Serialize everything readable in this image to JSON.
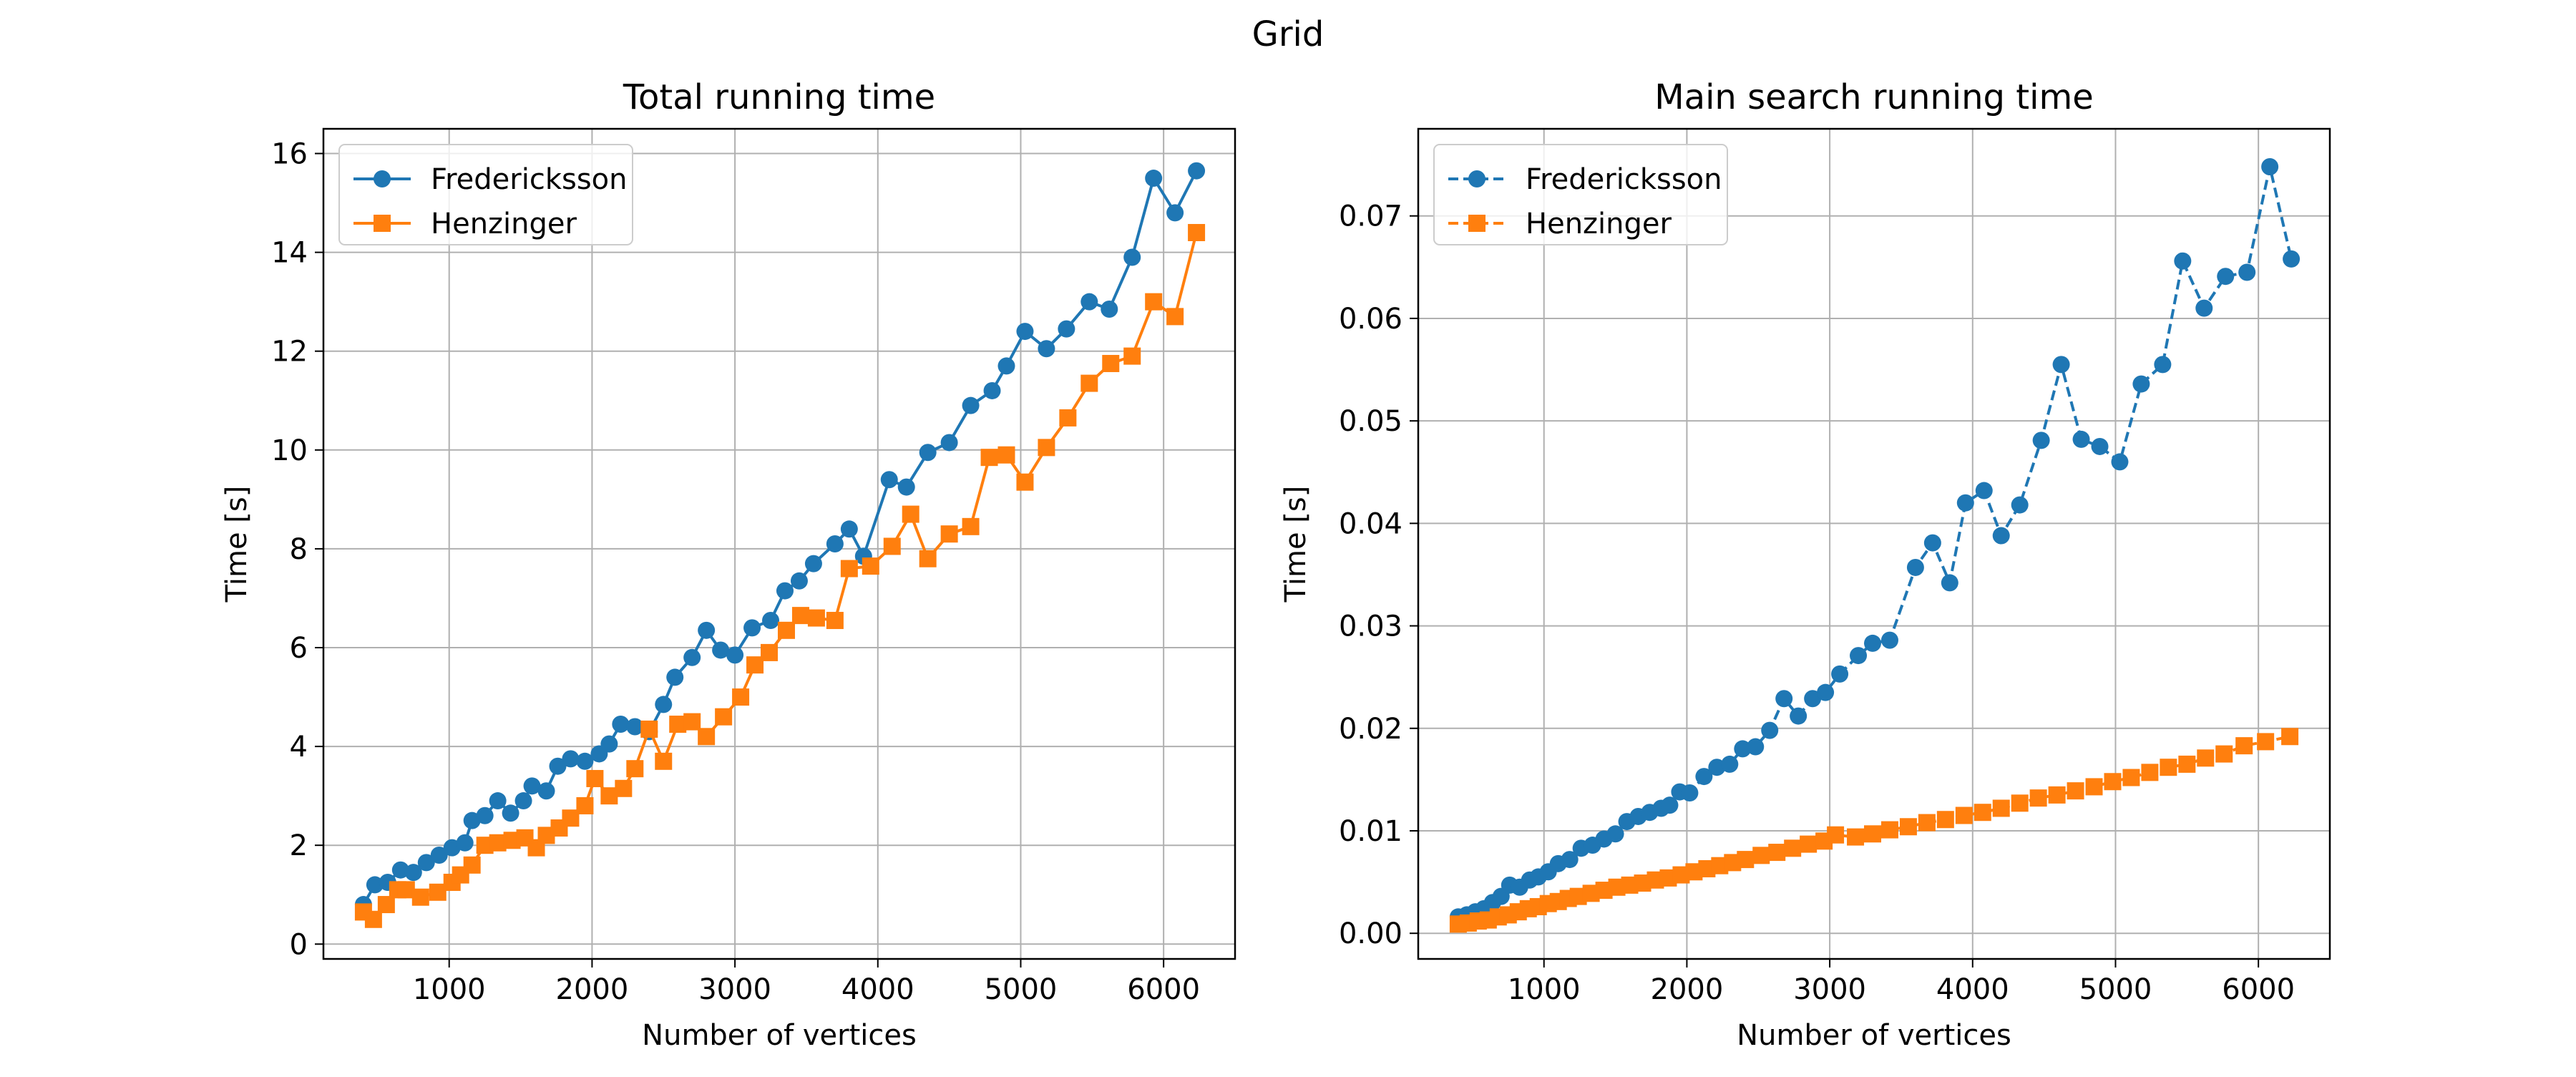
{
  "figure": {
    "suptitle": "Grid"
  },
  "chart_data": [
    {
      "type": "line",
      "title": "Total running time",
      "xlabel": "Number of vertices",
      "ylabel": "Time [s]",
      "xlim": [
        120,
        6500
      ],
      "ylim": [
        -0.3,
        16.5
      ],
      "xticks": [
        1000,
        2000,
        3000,
        4000,
        5000,
        6000
      ],
      "xtick_labels": [
        "1000",
        "2000",
        "3000",
        "4000",
        "5000",
        "6000"
      ],
      "yticks": [
        0,
        2,
        4,
        6,
        8,
        10,
        12,
        14,
        16
      ],
      "ytick_labels": [
        "0",
        "2",
        "4",
        "6",
        "8",
        "10",
        "12",
        "14",
        "16"
      ],
      "grid": true,
      "legend_position": "upper-left",
      "series": [
        {
          "name": "Fredericksson",
          "color": "#1f77b4",
          "marker": "circle",
          "linestyle": "solid",
          "points": [
            [
              400,
              0.8
            ],
            [
              480,
              1.2
            ],
            [
              570,
              1.25
            ],
            [
              660,
              1.5
            ],
            [
              750,
              1.45
            ],
            [
              840,
              1.65
            ],
            [
              930,
              1.8
            ],
            [
              1020,
              1.95
            ],
            [
              1110,
              2.05
            ],
            [
              1160,
              2.5
            ],
            [
              1250,
              2.6
            ],
            [
              1340,
              2.9
            ],
            [
              1430,
              2.65
            ],
            [
              1520,
              2.9
            ],
            [
              1580,
              3.2
            ],
            [
              1680,
              3.1
            ],
            [
              1760,
              3.6
            ],
            [
              1850,
              3.75
            ],
            [
              1950,
              3.7
            ],
            [
              2050,
              3.85
            ],
            [
              2120,
              4.05
            ],
            [
              2200,
              4.45
            ],
            [
              2300,
              4.4
            ],
            [
              2400,
              4.3
            ],
            [
              2500,
              4.85
            ],
            [
              2580,
              5.4
            ],
            [
              2700,
              5.8
            ],
            [
              2800,
              6.35
            ],
            [
              2900,
              5.95
            ],
            [
              3000,
              5.85
            ],
            [
              3120,
              6.4
            ],
            [
              3250,
              6.55
            ],
            [
              3350,
              7.15
            ],
            [
              3450,
              7.35
            ],
            [
              3550,
              7.7
            ],
            [
              3700,
              8.1
            ],
            [
              3800,
              8.4
            ],
            [
              3900,
              7.85
            ],
            [
              4080,
              9.4
            ],
            [
              4200,
              9.25
            ],
            [
              4350,
              9.95
            ],
            [
              4500,
              10.15
            ],
            [
              4650,
              10.9
            ],
            [
              4800,
              11.2
            ],
            [
              4900,
              11.7
            ],
            [
              5030,
              12.4
            ],
            [
              5180,
              12.05
            ],
            [
              5320,
              12.45
            ],
            [
              5480,
              13.0
            ],
            [
              5620,
              12.85
            ],
            [
              5780,
              13.9
            ],
            [
              5930,
              15.5
            ],
            [
              6080,
              14.8
            ],
            [
              6230,
              15.65
            ]
          ]
        },
        {
          "name": "Henzinger",
          "color": "#ff7f0e",
          "marker": "square",
          "linestyle": "solid",
          "points": [
            [
              400,
              0.65
            ],
            [
              470,
              0.5
            ],
            [
              560,
              0.8
            ],
            [
              640,
              1.1
            ],
            [
              700,
              1.1
            ],
            [
              800,
              0.95
            ],
            [
              920,
              1.05
            ],
            [
              1020,
              1.25
            ],
            [
              1080,
              1.4
            ],
            [
              1160,
              1.6
            ],
            [
              1250,
              2.0
            ],
            [
              1340,
              2.05
            ],
            [
              1440,
              2.1
            ],
            [
              1530,
              2.15
            ],
            [
              1610,
              1.95
            ],
            [
              1680,
              2.2
            ],
            [
              1770,
              2.35
            ],
            [
              1850,
              2.55
            ],
            [
              1950,
              2.8
            ],
            [
              2020,
              3.35
            ],
            [
              2120,
              3.0
            ],
            [
              2220,
              3.15
            ],
            [
              2300,
              3.55
            ],
            [
              2400,
              4.35
            ],
            [
              2500,
              3.7
            ],
            [
              2600,
              4.45
            ],
            [
              2700,
              4.5
            ],
            [
              2800,
              4.2
            ],
            [
              2920,
              4.6
            ],
            [
              3040,
              5.0
            ],
            [
              3140,
              5.65
            ],
            [
              3240,
              5.9
            ],
            [
              3360,
              6.35
            ],
            [
              3460,
              6.65
            ],
            [
              3570,
              6.6
            ],
            [
              3700,
              6.55
            ],
            [
              3800,
              7.6
            ],
            [
              3950,
              7.65
            ],
            [
              4100,
              8.05
            ],
            [
              4230,
              8.7
            ],
            [
              4350,
              7.8
            ],
            [
              4500,
              8.3
            ],
            [
              4650,
              8.45
            ],
            [
              4780,
              9.85
            ],
            [
              4900,
              9.9
            ],
            [
              5030,
              9.35
            ],
            [
              5180,
              10.05
            ],
            [
              5330,
              10.65
            ],
            [
              5480,
              11.35
            ],
            [
              5630,
              11.75
            ],
            [
              5780,
              11.9
            ],
            [
              5930,
              13.0
            ],
            [
              6080,
              12.7
            ],
            [
              6230,
              14.4
            ]
          ]
        }
      ]
    },
    {
      "type": "line",
      "title": "Main search running time",
      "xlabel": "Number of vertices",
      "ylabel": "Time [s]",
      "xlim": [
        120,
        6500
      ],
      "ylim": [
        -0.0025,
        0.0785
      ],
      "xticks": [
        1000,
        2000,
        3000,
        4000,
        5000,
        6000
      ],
      "xtick_labels": [
        "1000",
        "2000",
        "3000",
        "4000",
        "5000",
        "6000"
      ],
      "yticks": [
        0,
        0.01,
        0.02,
        0.03,
        0.04,
        0.05,
        0.06,
        0.07
      ],
      "ytick_labels": [
        "0.00",
        "0.01",
        "0.02",
        "0.03",
        "0.04",
        "0.05",
        "0.06",
        "0.07"
      ],
      "grid": true,
      "legend_position": "upper-left",
      "series": [
        {
          "name": "Fredericksson",
          "color": "#1f77b4",
          "marker": "circle",
          "linestyle": "dashed",
          "points": [
            [
              400,
              0.0016
            ],
            [
              460,
              0.0018
            ],
            [
              520,
              0.0021
            ],
            [
              580,
              0.0024
            ],
            [
              640,
              0.003
            ],
            [
              700,
              0.0036
            ],
            [
              760,
              0.0047
            ],
            [
              830,
              0.0045
            ],
            [
              900,
              0.0052
            ],
            [
              960,
              0.0055
            ],
            [
              1030,
              0.006
            ],
            [
              1100,
              0.0068
            ],
            [
              1180,
              0.0072
            ],
            [
              1260,
              0.0083
            ],
            [
              1340,
              0.0086
            ],
            [
              1420,
              0.0092
            ],
            [
              1500,
              0.0097
            ],
            [
              1580,
              0.0109
            ],
            [
              1660,
              0.0114
            ],
            [
              1740,
              0.0118
            ],
            [
              1820,
              0.0122
            ],
            [
              1880,
              0.0125
            ],
            [
              1950,
              0.0138
            ],
            [
              2020,
              0.0137
            ],
            [
              2120,
              0.0153
            ],
            [
              2210,
              0.0162
            ],
            [
              2300,
              0.0165
            ],
            [
              2390,
              0.018
            ],
            [
              2480,
              0.0182
            ],
            [
              2580,
              0.0198
            ],
            [
              2680,
              0.0229
            ],
            [
              2780,
              0.0212
            ],
            [
              2880,
              0.0229
            ],
            [
              2970,
              0.0235
            ],
            [
              3070,
              0.0253
            ],
            [
              3200,
              0.0271
            ],
            [
              3300,
              0.0283
            ],
            [
              3420,
              0.0286
            ],
            [
              3600,
              0.0357
            ],
            [
              3720,
              0.0381
            ],
            [
              3840,
              0.0342
            ],
            [
              3950,
              0.042
            ],
            [
              4080,
              0.0432
            ],
            [
              4200,
              0.0388
            ],
            [
              4330,
              0.0418
            ],
            [
              4480,
              0.0481
            ],
            [
              4620,
              0.0555
            ],
            [
              4760,
              0.0482
            ],
            [
              4890,
              0.0475
            ],
            [
              5030,
              0.046
            ],
            [
              5180,
              0.0536
            ],
            [
              5330,
              0.0555
            ],
            [
              5470,
              0.0656
            ],
            [
              5620,
              0.061
            ],
            [
              5770,
              0.0641
            ],
            [
              5920,
              0.0645
            ],
            [
              6080,
              0.0748
            ],
            [
              6230,
              0.0658
            ]
          ]
        },
        {
          "name": "Henzinger",
          "color": "#ff7f0e",
          "marker": "square",
          "linestyle": "dashed",
          "points": [
            [
              400,
              0.0009
            ],
            [
              470,
              0.001
            ],
            [
              540,
              0.0012
            ],
            [
              610,
              0.0013
            ],
            [
              680,
              0.0016
            ],
            [
              750,
              0.0018
            ],
            [
              820,
              0.0021
            ],
            [
              890,
              0.0024
            ],
            [
              960,
              0.0026
            ],
            [
              1030,
              0.0029
            ],
            [
              1100,
              0.0031
            ],
            [
              1170,
              0.0034
            ],
            [
              1240,
              0.0036
            ],
            [
              1330,
              0.0039
            ],
            [
              1420,
              0.0042
            ],
            [
              1510,
              0.0045
            ],
            [
              1600,
              0.0047
            ],
            [
              1690,
              0.0049
            ],
            [
              1780,
              0.0052
            ],
            [
              1870,
              0.0054
            ],
            [
              1960,
              0.0057
            ],
            [
              2050,
              0.006
            ],
            [
              2140,
              0.0063
            ],
            [
              2230,
              0.0066
            ],
            [
              2320,
              0.0069
            ],
            [
              2410,
              0.0072
            ],
            [
              2520,
              0.0076
            ],
            [
              2630,
              0.0079
            ],
            [
              2740,
              0.0083
            ],
            [
              2850,
              0.0087
            ],
            [
              2960,
              0.009
            ],
            [
              3040,
              0.0096
            ],
            [
              3180,
              0.0094
            ],
            [
              3300,
              0.0097
            ],
            [
              3420,
              0.0101
            ],
            [
              3550,
              0.0104
            ],
            [
              3680,
              0.0108
            ],
            [
              3810,
              0.0111
            ],
            [
              3940,
              0.0115
            ],
            [
              4070,
              0.0118
            ],
            [
              4200,
              0.0122
            ],
            [
              4330,
              0.0127
            ],
            [
              4460,
              0.0132
            ],
            [
              4590,
              0.0135
            ],
            [
              4720,
              0.0139
            ],
            [
              4850,
              0.0143
            ],
            [
              4980,
              0.0148
            ],
            [
              5110,
              0.0152
            ],
            [
              5240,
              0.0157
            ],
            [
              5370,
              0.0162
            ],
            [
              5500,
              0.0165
            ],
            [
              5630,
              0.0171
            ],
            [
              5760,
              0.0175
            ],
            [
              5900,
              0.0183
            ],
            [
              6050,
              0.0187
            ],
            [
              6220,
              0.0192
            ]
          ]
        }
      ]
    }
  ]
}
